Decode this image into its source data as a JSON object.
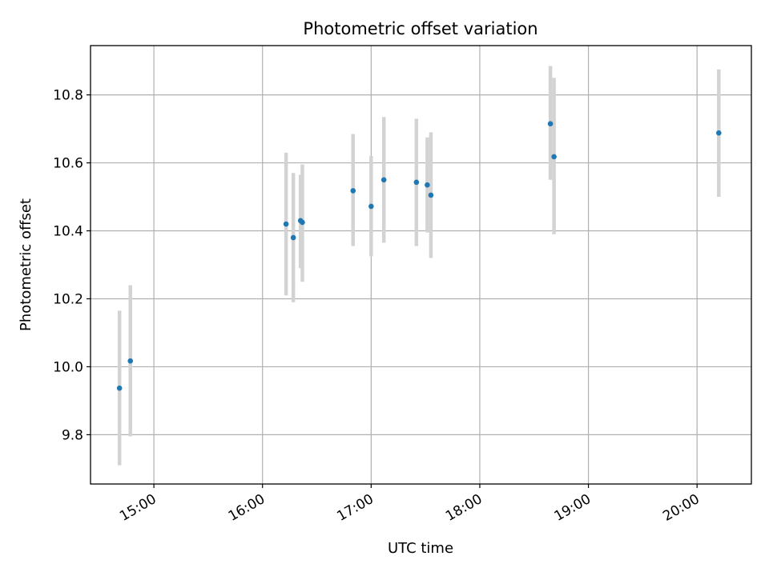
{
  "chart_data": {
    "type": "scatter",
    "title": "Photometric offset variation",
    "xlabel": "UTC time",
    "ylabel": "Photometric offset",
    "x_ticks": [
      "15:00",
      "16:00",
      "17:00",
      "18:00",
      "19:00",
      "20:00"
    ],
    "y_ticks": [
      "9.8",
      "10.0",
      "10.2",
      "10.4",
      "10.6",
      "10.8"
    ],
    "xlim": [
      "14:25",
      "20:30"
    ],
    "ylim": [
      9.655,
      10.945
    ],
    "grid": true,
    "marker_color": "#1f77b4",
    "errorbar_color": "#d3d3d3",
    "points": [
      {
        "x": "14:41",
        "y": 9.937,
        "low": 9.71,
        "high": 10.165
      },
      {
        "x": "14:47",
        "y": 10.017,
        "low": 9.795,
        "high": 10.24
      },
      {
        "x": "16:13",
        "y": 10.42,
        "low": 10.21,
        "high": 10.63
      },
      {
        "x": "16:17",
        "y": 10.38,
        "low": 10.19,
        "high": 10.57
      },
      {
        "x": "16:21",
        "y": 10.43,
        "low": 10.29,
        "high": 10.565
      },
      {
        "x": "16:22",
        "y": 10.425,
        "low": 10.25,
        "high": 10.595
      },
      {
        "x": "16:50",
        "y": 10.518,
        "low": 10.355,
        "high": 10.685
      },
      {
        "x": "17:00",
        "y": 10.472,
        "low": 10.325,
        "high": 10.62
      },
      {
        "x": "17:07",
        "y": 10.55,
        "low": 10.365,
        "high": 10.735
      },
      {
        "x": "17:25",
        "y": 10.543,
        "low": 10.355,
        "high": 10.73
      },
      {
        "x": "17:31",
        "y": 10.535,
        "low": 10.395,
        "high": 10.675
      },
      {
        "x": "17:33",
        "y": 10.505,
        "low": 10.32,
        "high": 10.69
      },
      {
        "x": "18:39",
        "y": 10.715,
        "low": 10.55,
        "high": 10.885
      },
      {
        "x": "18:41",
        "y": 10.618,
        "low": 10.39,
        "high": 10.85
      },
      {
        "x": "20:12",
        "y": 10.688,
        "low": 10.5,
        "high": 10.875
      }
    ]
  }
}
